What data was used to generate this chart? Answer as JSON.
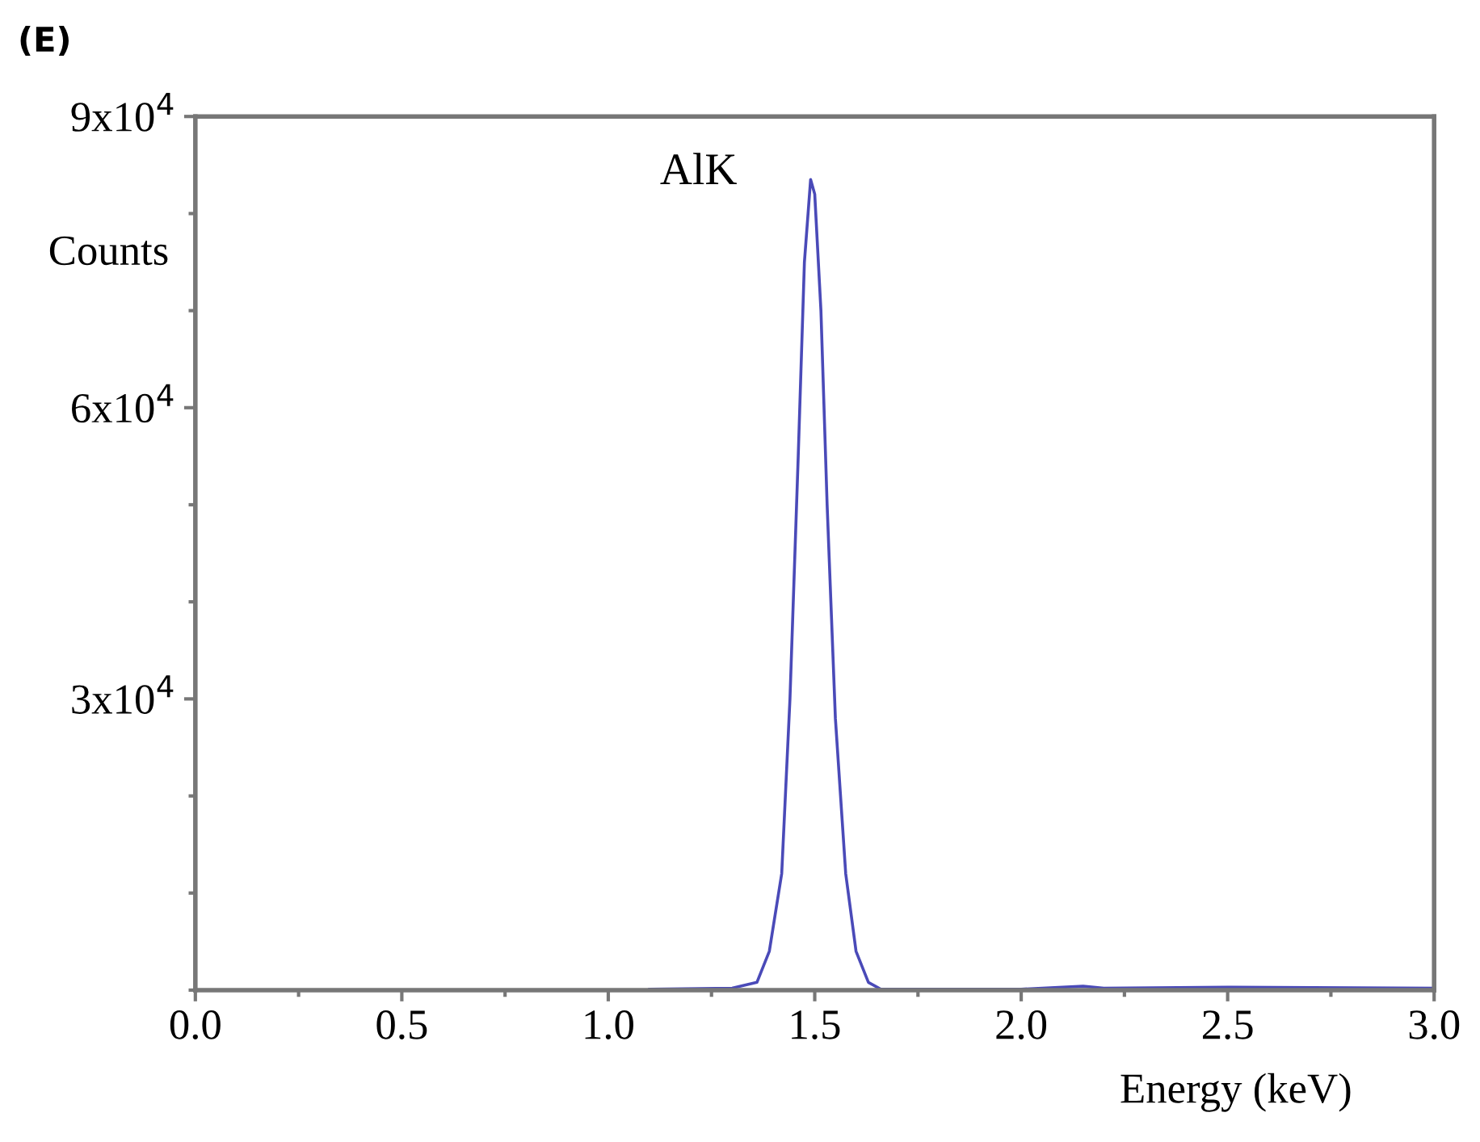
{
  "chart_data": {
    "type": "line",
    "title": "(E)",
    "xlabel": "Energy (keV)",
    "ylabel": "Counts",
    "x": [
      1.1,
      1.3,
      1.36,
      1.39,
      1.42,
      1.44,
      1.46,
      1.475,
      1.49,
      1.5,
      1.515,
      1.53,
      1.55,
      1.575,
      1.6,
      1.63,
      1.66,
      2.0,
      2.15,
      2.2,
      2.5,
      3.0
    ],
    "series": [
      {
        "color": "#4a4ab8",
        "values": [
          100,
          200,
          800,
          4000,
          12000,
          30000,
          55000,
          75000,
          83500,
          82000,
          70000,
          50000,
          28000,
          12000,
          4000,
          800,
          100,
          100,
          400,
          200,
          300,
          200
        ]
      }
    ],
    "annotations": [
      "AlK"
    ],
    "xlim": [
      0,
      3
    ],
    "ylim": [
      0,
      90000
    ],
    "xticks": [
      {
        "value": 0,
        "label": "0.0"
      },
      {
        "value": 0.25,
        "label": null
      },
      0.5,
      {
        "value": 0.75,
        "label": null
      },
      {
        "value": 1,
        "label": "1.0"
      },
      {
        "value": 1.25,
        "label": null
      },
      1.5,
      {
        "value": 1.75,
        "label": null
      },
      {
        "value": 2,
        "label": "2.0"
      },
      {
        "value": 2.25,
        "label": null
      },
      2.5,
      {
        "value": 2.75,
        "label": null
      },
      {
        "value": 3,
        "label": "3.0"
      }
    ],
    "yticks": [
      {
        "value": 0,
        "label": null
      },
      {
        "value": 10000,
        "label": null
      },
      {
        "value": 20000,
        "label": null
      },
      {
        "value": 30000,
        "label": "3x10$^{4}$"
      },
      {
        "value": 40000,
        "label": null
      },
      {
        "value": 50000,
        "label": null
      },
      {
        "value": 60000,
        "label": "6x10$^{4}$"
      },
      {
        "value": 70000,
        "label": null
      },
      {
        "value": 80000,
        "label": null
      },
      {
        "value": 90000,
        "label": "9x10$^{4}$"
      }
    ],
    "grid": false,
    "legend": false,
    "marker": "none",
    "line_style": "solid"
  }
}
